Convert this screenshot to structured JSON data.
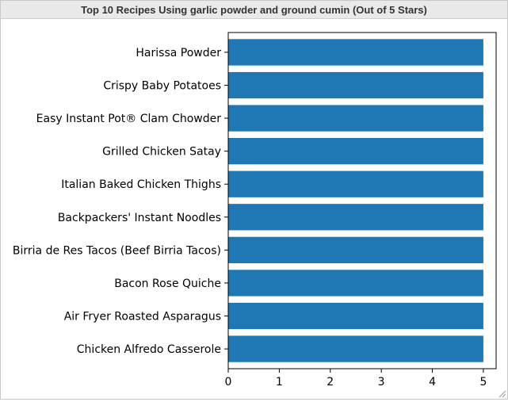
{
  "window": {
    "title": "Top 10 Recipes Using garlic powder and ground cumin (Out of 5 Stars)"
  },
  "chart_data": {
    "type": "bar",
    "orientation": "horizontal",
    "categories": [
      "Harissa Powder",
      "Crispy Baby Potatoes",
      "Easy Instant Pot® Clam Chowder",
      "Grilled Chicken Satay",
      "Italian Baked Chicken Thighs",
      "Backpackers' Instant Noodles",
      "Birria de Res Tacos (Beef Birria Tacos)",
      "Bacon Rose Quiche",
      "Air Fryer Roasted Asparagus",
      "Chicken Alfredo Casserole"
    ],
    "values": [
      5,
      5,
      5,
      5,
      5,
      5,
      5,
      5,
      5,
      5
    ],
    "xticks": [
      0,
      1,
      2,
      3,
      4,
      5
    ],
    "xlim": [
      0,
      5.25
    ],
    "title": "",
    "xlabel": "",
    "ylabel": "",
    "bar_color": "#1f77b4",
    "grid": false,
    "legend": "none"
  }
}
